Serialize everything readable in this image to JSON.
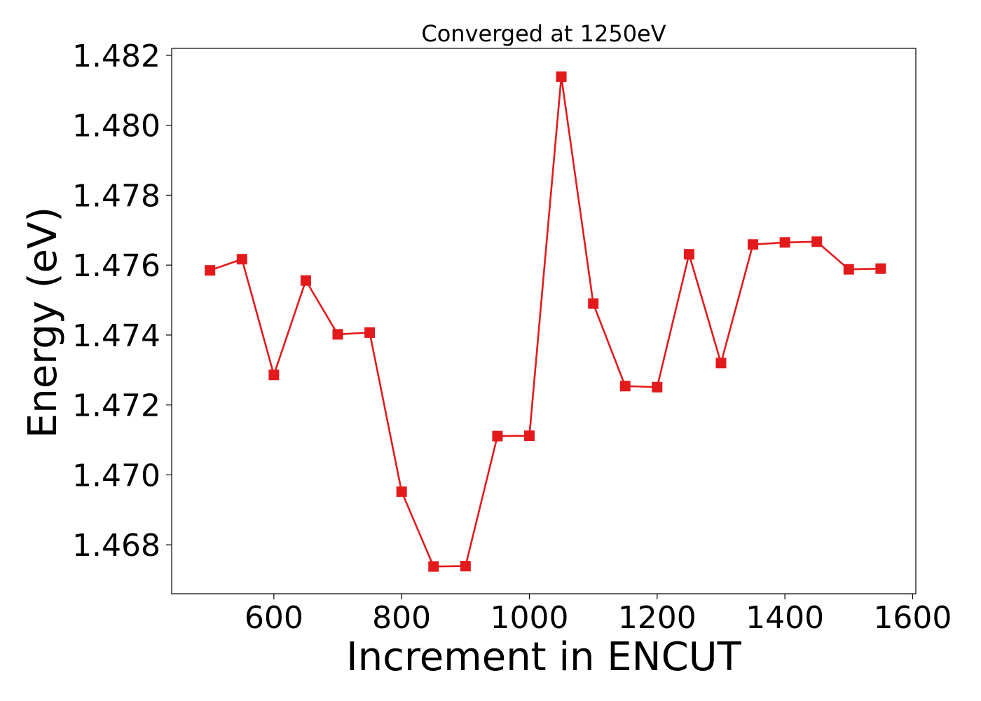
{
  "chart_data": {
    "type": "line",
    "title": "Converged at 1250eV",
    "xlabel": "Increment in ENCUT",
    "ylabel": "Energy (eV)",
    "xlim": [
      440,
      1605
    ],
    "ylim": [
      1.4666,
      1.4822
    ],
    "xticks": [
      600,
      800,
      1000,
      1200,
      1400,
      1600
    ],
    "yticks": [
      1.468,
      1.47,
      1.472,
      1.474,
      1.476,
      1.478,
      1.48,
      1.482
    ],
    "grid": false,
    "legend": "none",
    "marker": "square",
    "color": "#e31a1c",
    "series": [
      {
        "x": [
          500,
          550,
          600,
          650,
          700,
          750,
          800,
          850,
          900,
          950,
          1000,
          1050,
          1100,
          1150,
          1200,
          1250,
          1300,
          1350,
          1400,
          1450,
          1500,
          1550
        ],
        "y": [
          1.47585,
          1.47617,
          1.47286,
          1.47556,
          1.47402,
          1.47407,
          1.46952,
          1.46738,
          1.46739,
          1.47111,
          1.47112,
          1.48139,
          1.4749,
          1.47254,
          1.47251,
          1.47631,
          1.4732,
          1.47659,
          1.47665,
          1.47667,
          1.47588,
          1.4759
        ]
      }
    ]
  }
}
